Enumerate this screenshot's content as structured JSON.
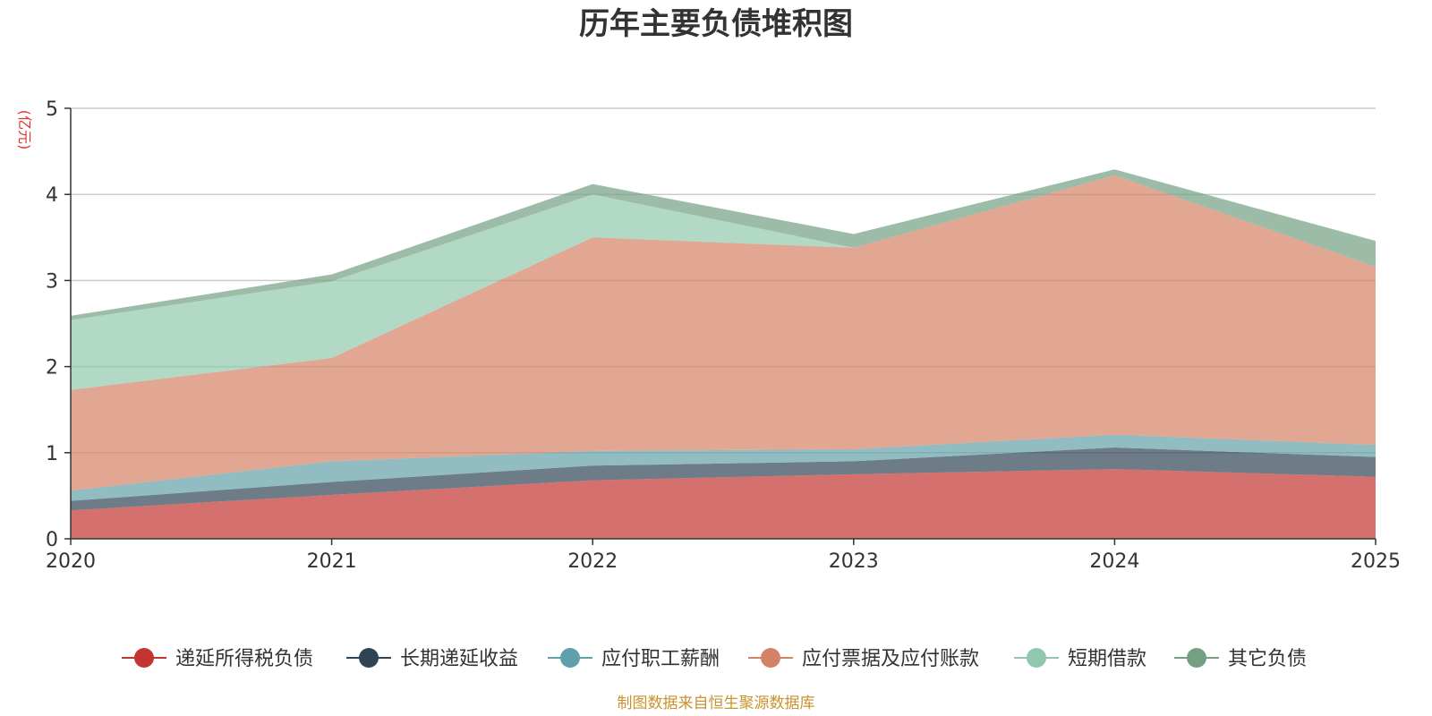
{
  "chart_data": {
    "type": "area",
    "stacked": true,
    "title": "历年主要负债堆积图",
    "unit_label": "(亿元)",
    "x": [
      "2020",
      "2021",
      "2022",
      "2023",
      "2024",
      "2025"
    ],
    "ylim": [
      0,
      5
    ],
    "yticks": [
      "0",
      "1",
      "2",
      "3",
      "4",
      "5"
    ],
    "grid": true,
    "legend_position": "bottom",
    "source_note": "制图数据来自恒生聚源数据库",
    "series": [
      {
        "name": "递延所得税负债",
        "color": "#c23531",
        "values": [
          0.33,
          0.51,
          0.68,
          0.75,
          0.81,
          0.72
        ]
      },
      {
        "name": "长期递延收益",
        "color": "#2f4554",
        "values": [
          0.11,
          0.15,
          0.17,
          0.15,
          0.25,
          0.23
        ]
      },
      {
        "name": "应付职工薪酬",
        "color": "#61a0a8",
        "values": [
          0.12,
          0.24,
          0.17,
          0.14,
          0.15,
          0.14
        ]
      },
      {
        "name": "应付票据及应付账款",
        "color": "#d48265",
        "values": [
          1.17,
          1.2,
          2.48,
          2.34,
          3.01,
          2.07
        ]
      },
      {
        "name": "短期借款",
        "color": "#91c7ae",
        "values": [
          0.81,
          0.89,
          0.5,
          0.0,
          0.0,
          0.0
        ]
      },
      {
        "name": "其它负债",
        "color": "#749f83",
        "values": [
          0.05,
          0.08,
          0.12,
          0.16,
          0.07,
          0.3
        ]
      }
    ]
  }
}
